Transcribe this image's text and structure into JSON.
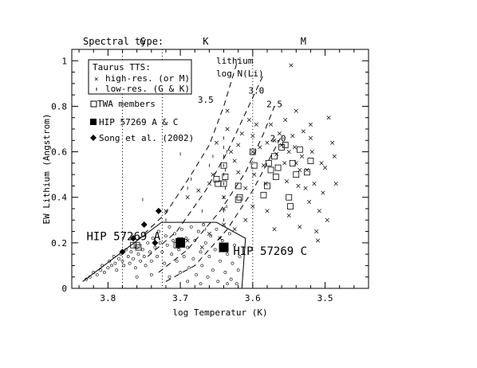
{
  "chart_data": {
    "type": "scatter",
    "xlabel": "log Temperatur (K)",
    "ylabel": "EW Lithium (Angstrom)",
    "xlim": [
      3.85,
      3.44
    ],
    "ylim": [
      0,
      1.05
    ],
    "x_reversed": true,
    "x_ticks": [
      3.8,
      3.7,
      3.6,
      3.5
    ],
    "x_tick_labels": [
      "3.8",
      "3.7",
      "3.6",
      "3.5"
    ],
    "y_ticks": [
      0,
      0.2,
      0.4,
      0.6,
      0.8,
      1
    ],
    "y_tick_labels": [
      "0",
      "0.2",
      "0.4",
      "0.6",
      "0.8",
      "1"
    ],
    "spectral_type": {
      "label": "Spectral type:",
      "boundaries": [
        3.78,
        3.725,
        3.6
      ],
      "labels": [
        "G",
        "K",
        "M"
      ],
      "label_x": [
        3.752,
        3.665,
        3.53
      ]
    },
    "legend": {
      "box_title": "Taurus TTS:",
      "box_entries": [
        "high-res. (or M)",
        "low-res. (G & K)"
      ],
      "entries": [
        "TWA members",
        "HIP 57269 A & C",
        "Song et al. (2002)"
      ]
    },
    "lithium_curves": {
      "title": [
        "lithium",
        "log N(Li)"
      ],
      "labels": [
        "3.5",
        "3.0",
        "2.5",
        "2.0"
      ],
      "label_points": [
        [
          3.665,
          0.83
        ],
        [
          3.595,
          0.87
        ],
        [
          3.57,
          0.81
        ],
        [
          3.565,
          0.66
        ]
      ],
      "curves": [
        [
          [
            3.76,
            0.21
          ],
          [
            3.72,
            0.33
          ],
          [
            3.685,
            0.5
          ],
          [
            3.66,
            0.63
          ],
          [
            3.64,
            0.8
          ],
          [
            3.62,
            1.01
          ]
        ],
        [
          [
            3.745,
            0.14
          ],
          [
            3.705,
            0.25
          ],
          [
            3.665,
            0.43
          ],
          [
            3.635,
            0.6
          ],
          [
            3.61,
            0.77
          ],
          [
            3.585,
            0.94
          ]
        ],
        [
          [
            3.73,
            0.07
          ],
          [
            3.69,
            0.17
          ],
          [
            3.645,
            0.34
          ],
          [
            3.61,
            0.51
          ],
          [
            3.585,
            0.68
          ],
          [
            3.57,
            0.8
          ]
        ],
        [
          [
            3.72,
            0.03
          ],
          [
            3.68,
            0.1
          ],
          [
            3.635,
            0.26
          ],
          [
            3.6,
            0.43
          ],
          [
            3.575,
            0.58
          ],
          [
            3.56,
            0.67
          ]
        ]
      ]
    },
    "envelope": [
      [
        3.835,
        0.03
      ],
      [
        3.726,
        0.29
      ],
      [
        3.65,
        0.29
      ],
      [
        3.61,
        0.22
      ],
      [
        3.615,
        0.0
      ]
    ],
    "hip_labels": {
      "A": {
        "text": "HIP 57269 A",
        "at": [
          3.79,
          0.23
        ]
      },
      "C": {
        "text": "HIP 57269 C",
        "at": [
          3.627,
          0.165
        ]
      }
    },
    "series": [
      {
        "name": "HIP 57269 A & C",
        "marker": "filled-square",
        "points": [
          [
            3.7,
            0.2
          ],
          [
            3.64,
            0.18
          ]
        ]
      },
      {
        "name": "Song et al. (2002)",
        "marker": "filled-diamond",
        "points": [
          [
            3.78,
            0.16
          ],
          [
            3.75,
            0.28
          ],
          [
            3.73,
            0.34
          ],
          [
            3.765,
            0.22
          ],
          [
            3.735,
            0.2
          ]
        ]
      },
      {
        "name": "TWA members",
        "marker": "open-square",
        "points": [
          [
            3.765,
            0.19
          ],
          [
            3.76,
            0.19
          ],
          [
            3.758,
            0.18
          ],
          [
            3.705,
            0.19
          ],
          [
            3.7,
            0.21
          ],
          [
            3.65,
            0.48
          ],
          [
            3.648,
            0.46
          ],
          [
            3.64,
            0.46
          ],
          [
            3.64,
            0.54
          ],
          [
            3.638,
            0.49
          ],
          [
            3.62,
            0.45
          ],
          [
            3.62,
            0.39
          ],
          [
            3.618,
            0.4
          ],
          [
            3.6,
            0.6
          ],
          [
            3.598,
            0.54
          ],
          [
            3.585,
            0.41
          ],
          [
            3.58,
            0.45
          ],
          [
            3.578,
            0.55
          ],
          [
            3.575,
            0.52
          ],
          [
            3.57,
            0.58
          ],
          [
            3.568,
            0.49
          ],
          [
            3.565,
            0.53
          ],
          [
            3.56,
            0.62
          ],
          [
            3.555,
            0.63
          ],
          [
            3.55,
            0.4
          ],
          [
            3.548,
            0.36
          ],
          [
            3.545,
            0.55
          ],
          [
            3.54,
            0.5
          ],
          [
            3.535,
            0.61
          ],
          [
            3.525,
            0.51
          ],
          [
            3.52,
            0.56
          ]
        ]
      },
      {
        "name": "high-res. (or M)",
        "marker": "cross",
        "points": [
          [
            3.72,
            0.34
          ],
          [
            3.69,
            0.21
          ],
          [
            3.69,
            0.4
          ],
          [
            3.675,
            0.43
          ],
          [
            3.66,
            0.46
          ],
          [
            3.655,
            0.5
          ],
          [
            3.65,
            0.64
          ],
          [
            3.64,
            0.35
          ],
          [
            3.64,
            0.4
          ],
          [
            3.635,
            0.78
          ],
          [
            3.635,
            0.7
          ],
          [
            3.63,
            0.6
          ],
          [
            3.625,
            0.56
          ],
          [
            3.62,
            0.51
          ],
          [
            3.62,
            0.63
          ],
          [
            3.615,
            0.68
          ],
          [
            3.61,
            0.44
          ],
          [
            3.605,
            0.74
          ],
          [
            3.6,
            0.67
          ],
          [
            3.6,
            0.6
          ],
          [
            3.598,
            0.5
          ],
          [
            3.595,
            0.72
          ],
          [
            3.59,
            0.62
          ],
          [
            3.585,
            0.54
          ],
          [
            3.582,
            0.46
          ],
          [
            3.58,
            0.64
          ],
          [
            3.575,
            0.72
          ],
          [
            3.57,
            0.65
          ],
          [
            3.567,
            0.59
          ],
          [
            3.563,
            0.68
          ],
          [
            3.56,
            0.63
          ],
          [
            3.556,
            0.55
          ],
          [
            3.553,
            0.47
          ],
          [
            3.55,
            0.6
          ],
          [
            3.547,
            0.98
          ],
          [
            3.545,
            0.67
          ],
          [
            3.542,
            0.62
          ],
          [
            3.54,
            0.55
          ],
          [
            3.537,
            0.45
          ],
          [
            3.535,
            0.52
          ],
          [
            3.532,
            0.58
          ],
          [
            3.53,
            0.69
          ],
          [
            3.527,
            0.44
          ],
          [
            3.525,
            0.52
          ],
          [
            3.522,
            0.38
          ],
          [
            3.52,
            0.66
          ],
          [
            3.518,
            0.6
          ],
          [
            3.515,
            0.46
          ],
          [
            3.512,
            0.25
          ],
          [
            3.51,
            0.21
          ],
          [
            3.508,
            0.34
          ],
          [
            3.505,
            0.55
          ],
          [
            3.503,
            0.42
          ],
          [
            3.5,
            0.53
          ],
          [
            3.497,
            0.3
          ],
          [
            3.495,
            0.75
          ],
          [
            3.49,
            0.64
          ],
          [
            3.487,
            0.58
          ],
          [
            3.485,
            0.46
          ],
          [
            3.58,
            0.34
          ],
          [
            3.57,
            0.26
          ],
          [
            3.55,
            0.32
          ],
          [
            3.535,
            0.27
          ],
          [
            3.6,
            0.36
          ],
          [
            3.61,
            0.3
          ],
          [
            3.625,
            0.26
          ],
          [
            3.64,
            0.28
          ],
          [
            3.645,
            0.22
          ],
          [
            3.66,
            0.24
          ],
          [
            3.67,
            0.18
          ],
          [
            3.555,
            0.74
          ],
          [
            3.54,
            0.78
          ],
          [
            3.52,
            0.72
          ]
        ]
      },
      {
        "name": "low-res. (G & K)",
        "marker": "small-tick",
        "points": [
          [
            3.752,
            0.39
          ],
          [
            3.7,
            0.59
          ],
          [
            3.66,
            0.54
          ],
          [
            3.655,
            0.58
          ],
          [
            3.64,
            0.4
          ],
          [
            3.64,
            0.46
          ],
          [
            3.64,
            0.5
          ],
          [
            3.64,
            0.54
          ],
          [
            3.64,
            0.58
          ],
          [
            3.64,
            0.62
          ],
          [
            3.64,
            0.66
          ],
          [
            3.64,
            0.3
          ],
          [
            3.64,
            0.34
          ],
          [
            3.638,
            0.44
          ],
          [
            3.638,
            0.52
          ],
          [
            3.636,
            0.6
          ],
          [
            3.636,
            0.36
          ],
          [
            3.69,
            0.44
          ],
          [
            3.685,
            0.48
          ],
          [
            3.72,
            0.3
          ],
          [
            3.67,
            0.34
          ],
          [
            3.665,
            0.26
          ]
        ]
      },
      {
        "name": "Taurus TTS small circles",
        "marker": "open-circle",
        "points": [
          [
            3.83,
            0.04
          ],
          [
            3.825,
            0.05
          ],
          [
            3.82,
            0.07
          ],
          [
            3.815,
            0.06
          ],
          [
            3.81,
            0.08
          ],
          [
            3.808,
            0.1
          ],
          [
            3.805,
            0.07
          ],
          [
            3.8,
            0.09
          ],
          [
            3.798,
            0.12
          ],
          [
            3.795,
            0.1
          ],
          [
            3.792,
            0.14
          ],
          [
            3.79,
            0.11
          ],
          [
            3.788,
            0.08
          ],
          [
            3.785,
            0.13
          ],
          [
            3.782,
            0.15
          ],
          [
            3.78,
            0.12
          ],
          [
            3.778,
            0.1
          ],
          [
            3.775,
            0.17
          ],
          [
            3.772,
            0.14
          ],
          [
            3.77,
            0.11
          ],
          [
            3.768,
            0.16
          ],
          [
            3.765,
            0.13
          ],
          [
            3.762,
            0.09
          ],
          [
            3.76,
            0.18
          ],
          [
            3.758,
            0.15
          ],
          [
            3.755,
            0.12
          ],
          [
            3.752,
            0.17
          ],
          [
            3.75,
            0.14
          ],
          [
            3.748,
            0.1
          ],
          [
            3.745,
            0.2
          ],
          [
            3.742,
            0.16
          ],
          [
            3.74,
            0.12
          ],
          [
            3.738,
            0.22
          ],
          [
            3.735,
            0.18
          ],
          [
            3.732,
            0.14
          ],
          [
            3.73,
            0.25
          ],
          [
            3.728,
            0.2
          ],
          [
            3.725,
            0.16
          ],
          [
            3.722,
            0.11
          ],
          [
            3.72,
            0.23
          ],
          [
            3.718,
            0.19
          ],
          [
            3.715,
            0.27
          ],
          [
            3.712,
            0.15
          ],
          [
            3.71,
            0.21
          ],
          [
            3.708,
            0.24
          ],
          [
            3.705,
            0.12
          ],
          [
            3.702,
            0.17
          ],
          [
            3.698,
            0.26
          ],
          [
            3.695,
            0.14
          ],
          [
            3.692,
            0.22
          ],
          [
            3.69,
            0.18
          ],
          [
            3.688,
            0.09
          ],
          [
            3.685,
            0.27
          ],
          [
            3.682,
            0.13
          ],
          [
            3.68,
            0.21
          ],
          [
            3.678,
            0.06
          ],
          [
            3.675,
            0.25
          ],
          [
            3.672,
            0.16
          ],
          [
            3.67,
            0.1
          ],
          [
            3.668,
            0.28
          ],
          [
            3.665,
            0.2
          ],
          [
            3.662,
            0.05
          ],
          [
            3.66,
            0.14
          ],
          [
            3.658,
            0.23
          ],
          [
            3.655,
            0.08
          ],
          [
            3.652,
            0.17
          ],
          [
            3.65,
            0.26
          ],
          [
            3.648,
            0.03
          ],
          [
            3.645,
            0.12
          ],
          [
            3.642,
            0.21
          ],
          [
            3.638,
            0.07
          ],
          [
            3.635,
            0.15
          ],
          [
            3.632,
            0.24
          ],
          [
            3.63,
            0.04
          ],
          [
            3.628,
            0.11
          ],
          [
            3.625,
            0.19
          ],
          [
            3.622,
            0.02
          ],
          [
            3.62,
            0.08
          ],
          [
            3.618,
            0.14
          ],
          [
            3.635,
            0.02
          ],
          [
            3.7,
            0.07
          ],
          [
            3.715,
            0.05
          ],
          [
            3.74,
            0.06
          ],
          [
            3.76,
            0.05
          ],
          [
            3.69,
            0.03
          ],
          [
            3.672,
            0.02
          ]
        ]
      }
    ]
  }
}
